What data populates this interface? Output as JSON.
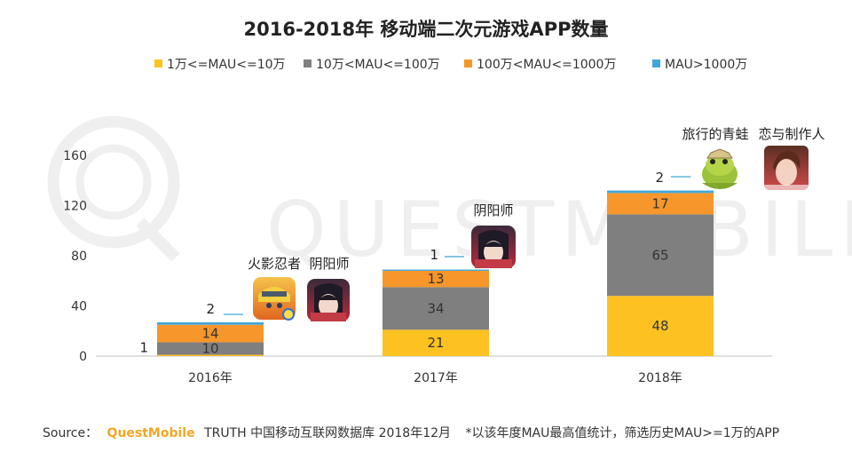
{
  "chart_data": {
    "type": "bar",
    "stacked": true,
    "title": "2016-2018年 移动端二次元游戏APP数量",
    "categories": [
      "2016年",
      "2017年",
      "2018年"
    ],
    "ylim": [
      0,
      160
    ],
    "yticks": [
      0,
      40,
      80,
      120,
      160
    ],
    "legend_position": "top",
    "grid": false,
    "series": [
      {
        "name": "1万<=MAU<=10万",
        "color": "#fdc221",
        "values": [
          1,
          21,
          48
        ],
        "labels": [
          "1",
          "21",
          "48"
        ]
      },
      {
        "name": "10万<MAU<=100万",
        "color": "#7f7f7f",
        "values": [
          10,
          34,
          65
        ],
        "labels": [
          "10",
          "34",
          "65"
        ]
      },
      {
        "name": "100万<MAU<=1000万",
        "color": "#f7962a",
        "values": [
          14,
          13,
          17
        ],
        "labels": [
          "14",
          "13",
          "17"
        ]
      },
      {
        "name": "MAU>1000万",
        "color": "#41a7d8",
        "values": [
          2,
          1,
          2
        ],
        "labels": [
          "2",
          "1",
          "2"
        ]
      }
    ],
    "annotations": [
      {
        "category": "2016年",
        "games": [
          "火影忍者",
          "阴阳师"
        ]
      },
      {
        "category": "2017年",
        "games": [
          "阴阳师"
        ]
      },
      {
        "category": "2018年",
        "games": [
          "旅行的青蛙",
          "恋与制作人"
        ]
      }
    ]
  },
  "watermark": "QUESTMOBILE",
  "footer": {
    "source_label": "Source：",
    "brand": "QuestMobile",
    "source_text": "TRUTH 中国移动互联网数据库 2018年12月",
    "note": "*以该年度MAU最高值统计，筛选历史MAU>=1万的APP"
  },
  "icons": {
    "naruto": "naruto-game-icon",
    "onmyoji": "onmyoji-game-icon",
    "frog": "travel-frog-game-icon",
    "love": "love-producer-game-icon"
  }
}
